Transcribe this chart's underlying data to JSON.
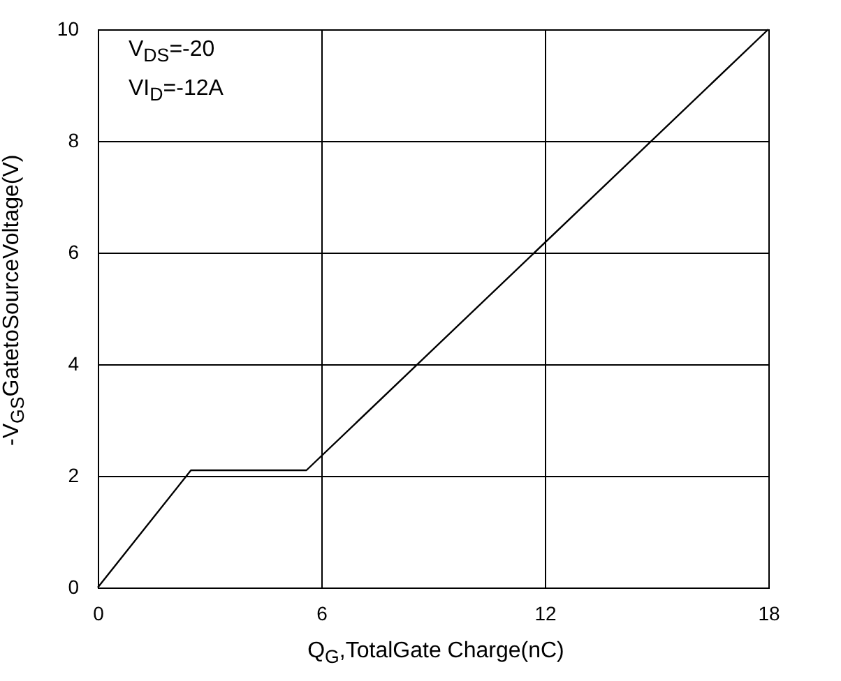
{
  "chart_data": {
    "type": "line",
    "xlabel": "Q$_{G}$,TotalGate Charge(nC)",
    "ylabel": "-V$_{GS}$GatetoSourceVoltage(V)",
    "x": [
      0,
      2.5,
      5.6,
      18
    ],
    "series": [
      {
        "color": "#000000",
        "values": [
          0,
          2.1,
          2.1,
          10
        ]
      }
    ],
    "xlim": [
      0,
      18
    ],
    "xticks": [
      0,
      6,
      12,
      18
    ],
    "ylim": [
      0,
      10
    ],
    "yticks": [
      0,
      2,
      4,
      6,
      8,
      10
    ],
    "grid": true,
    "marker": "none",
    "line_style": "solid",
    "annotations": [
      "V$_{DS}$=-20VI$_{D}$=-12A"
    ]
  }
}
